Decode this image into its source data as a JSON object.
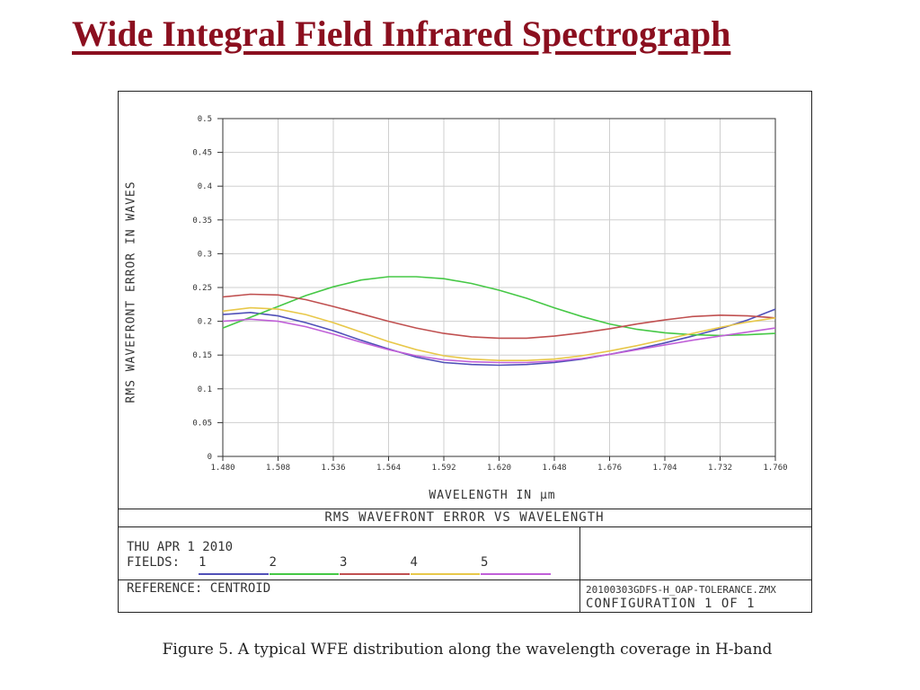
{
  "slide": {
    "title": "Wide Integral Field Infrared Spectrograph",
    "caption": "Figure 5. A typical WFE distribution along the wavelength coverage in H-band"
  },
  "figure": {
    "plot_title": "RMS WAVEFRONT ERROR VS WAVELENGTH",
    "date": "THU APR 1 2010",
    "fields_label": "FIELDS:",
    "reference": "REFERENCE: CENTROID",
    "file_name": "20100303GDFS-H_OAP-TOLERANCE.ZMX",
    "configuration": "CONFIGURATION 1 OF 1"
  },
  "chart_data": {
    "type": "line",
    "xlabel": "WAVELENGTH IN µm",
    "ylabel": "RMS WAVEFRONT ERROR IN WAVES",
    "xlim": [
      1.48,
      1.76
    ],
    "ylim": [
      0,
      0.5
    ],
    "x_ticks": [
      "1.480",
      "1.508",
      "1.536",
      "1.564",
      "1.592",
      "1.620",
      "1.648",
      "1.676",
      "1.704",
      "1.732",
      "1.760"
    ],
    "y_ticks": [
      "0",
      "0.05",
      "0.1",
      "0.15",
      "0.2",
      "0.25",
      "0.3",
      "0.35",
      "0.4",
      "0.45",
      "0.5"
    ],
    "grid": true,
    "x": [
      1.48,
      1.494,
      1.508,
      1.522,
      1.536,
      1.55,
      1.564,
      1.578,
      1.592,
      1.606,
      1.62,
      1.634,
      1.648,
      1.662,
      1.676,
      1.69,
      1.704,
      1.718,
      1.732,
      1.746,
      1.76
    ],
    "series": [
      {
        "name": "1",
        "color": "#5050b8",
        "values": [
          0.21,
          0.213,
          0.208,
          0.198,
          0.186,
          0.172,
          0.159,
          0.147,
          0.139,
          0.136,
          0.135,
          0.136,
          0.139,
          0.144,
          0.151,
          0.159,
          0.168,
          0.178,
          0.189,
          0.202,
          0.218
        ]
      },
      {
        "name": "2",
        "color": "#46c846",
        "values": [
          0.19,
          0.206,
          0.222,
          0.238,
          0.251,
          0.261,
          0.266,
          0.266,
          0.263,
          0.256,
          0.246,
          0.234,
          0.22,
          0.207,
          0.196,
          0.188,
          0.183,
          0.18,
          0.179,
          0.18,
          0.182
        ]
      },
      {
        "name": "3",
        "color": "#c05050",
        "values": [
          0.236,
          0.24,
          0.239,
          0.232,
          0.222,
          0.211,
          0.2,
          0.19,
          0.182,
          0.177,
          0.175,
          0.175,
          0.178,
          0.183,
          0.189,
          0.196,
          0.202,
          0.207,
          0.209,
          0.208,
          0.205
        ]
      },
      {
        "name": "4",
        "color": "#e8c84a",
        "values": [
          0.215,
          0.22,
          0.218,
          0.21,
          0.198,
          0.184,
          0.17,
          0.158,
          0.149,
          0.144,
          0.142,
          0.142,
          0.144,
          0.149,
          0.156,
          0.164,
          0.173,
          0.182,
          0.191,
          0.199,
          0.205
        ]
      },
      {
        "name": "5",
        "color": "#c060d8",
        "values": [
          0.2,
          0.203,
          0.2,
          0.192,
          0.181,
          0.169,
          0.158,
          0.149,
          0.143,
          0.14,
          0.139,
          0.139,
          0.141,
          0.145,
          0.151,
          0.158,
          0.165,
          0.172,
          0.178,
          0.184,
          0.19
        ]
      }
    ]
  }
}
